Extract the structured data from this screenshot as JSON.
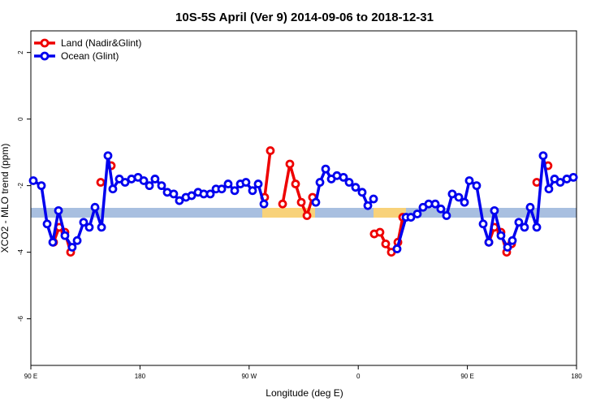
{
  "chart_data": {
    "type": "line",
    "title": "10S-5S April (Ver 9)   2014-09-06 to 2018-12-31",
    "xlabel": "Longitude (deg E)",
    "ylabel": "XCO2 - MLO trend (ppm)",
    "xlim": [
      90,
      540
    ],
    "xticks": [
      {
        "value": 90,
        "label": "90 E"
      },
      {
        "value": 180,
        "label": "180"
      },
      {
        "value": 270,
        "label": "90 W"
      },
      {
        "value": 360,
        "label": "0"
      },
      {
        "value": 450,
        "label": "90 E"
      },
      {
        "value": 540,
        "label": "180"
      }
    ],
    "ylim": [
      -7.4,
      2.65
    ],
    "yticks": [
      -6,
      -4,
      -2,
      0,
      2
    ],
    "legend": "top-left",
    "series": [
      {
        "name": "Land (Nadir&Glint)",
        "color": "#ee0000",
        "x": [
          108.7,
          113.4,
          118.1,
          122.8,
          null,
          147.6,
          null,
          156.3,
          null,
          282.8,
          287.5,
          null,
          297.6,
          303.6,
          308.3,
          313.0,
          317.7,
          322.3,
          null,
          373.2,
          377.9,
          382.6,
          387.3,
          392.7,
          396.7,
          null,
          467.7,
          472.3,
          477.7,
          482.4,
          486.4,
          null,
          507.2,
          null,
          516.5
        ],
        "values": [
          -3.7,
          -3.25,
          -3.4,
          -4.0,
          null,
          -1.9,
          null,
          -1.4,
          null,
          -2.35,
          -0.95,
          null,
          -2.55,
          -1.35,
          -1.95,
          -2.5,
          -2.9,
          -2.35,
          null,
          -3.45,
          -3.4,
          -3.75,
          -4.0,
          -3.7,
          -2.95,
          null,
          -3.7,
          -3.25,
          -3.4,
          -4.0,
          -3.75,
          null,
          -1.9,
          null,
          -1.4
        ]
      },
      {
        "name": "Ocean (Glint)",
        "color": "#0000ee",
        "x": [
          92.0,
          98.7,
          103.4,
          108.1,
          112.8,
          118.1,
          124.1,
          128.2,
          133.5,
          138.2,
          142.9,
          148.3,
          153.6,
          157.6,
          163.0,
          167.7,
          173.0,
          178.4,
          183.1,
          187.8,
          192.4,
          197.8,
          202.5,
          207.8,
          212.5,
          217.9,
          222.6,
          227.9,
          232.6,
          238.0,
          242.7,
          247.4,
          252.7,
          258.1,
          262.8,
          267.4,
          272.8,
          277.5,
          282.2,
          null,
          325.0,
          328.4,
          333.1,
          337.8,
          342.4,
          347.8,
          352.5,
          357.8,
          363.2,
          367.9,
          372.6,
          null,
          392.0,
          399.4,
          403.4,
          408.7,
          413.4,
          418.1,
          423.5,
          428.1,
          432.8,
          437.5,
          442.9,
          447.6,
          451.6,
          457.6,
          463.0,
          467.7,
          472.3,
          477.7,
          483.1,
          487.1,
          492.4,
          497.1,
          501.8,
          507.2,
          512.5,
          517.2,
          521.9,
          526.6,
          532.0,
          537.4
        ],
        "values": [
          -1.85,
          -2.0,
          -3.15,
          -3.7,
          -2.75,
          -3.5,
          -3.85,
          -3.65,
          -3.1,
          -3.25,
          -2.65,
          -3.25,
          -1.1,
          -2.1,
          -1.8,
          -1.9,
          -1.8,
          -1.75,
          -1.85,
          -2.0,
          -1.8,
          -2.0,
          -2.2,
          -2.25,
          -2.45,
          -2.35,
          -2.3,
          -2.2,
          -2.25,
          -2.25,
          -2.1,
          -2.1,
          -1.95,
          -2.15,
          -1.95,
          -1.9,
          -2.15,
          -1.95,
          -2.55,
          null,
          -2.5,
          -1.9,
          -1.5,
          -1.8,
          -1.7,
          -1.75,
          -1.9,
          -2.05,
          -2.2,
          -2.6,
          -2.4,
          null,
          -3.9,
          -2.95,
          -2.95,
          -2.85,
          -2.65,
          -2.55,
          -2.55,
          -2.7,
          -2.9,
          -2.25,
          -2.35,
          -2.5,
          -1.85,
          -2.0,
          -3.15,
          -3.7,
          -2.75,
          -3.5,
          -3.85,
          -3.65,
          -3.1,
          -3.25,
          -2.65,
          -3.25,
          -1.1,
          -2.1,
          -1.8,
          -1.9,
          -1.8,
          -1.75
        ]
      }
    ]
  }
}
